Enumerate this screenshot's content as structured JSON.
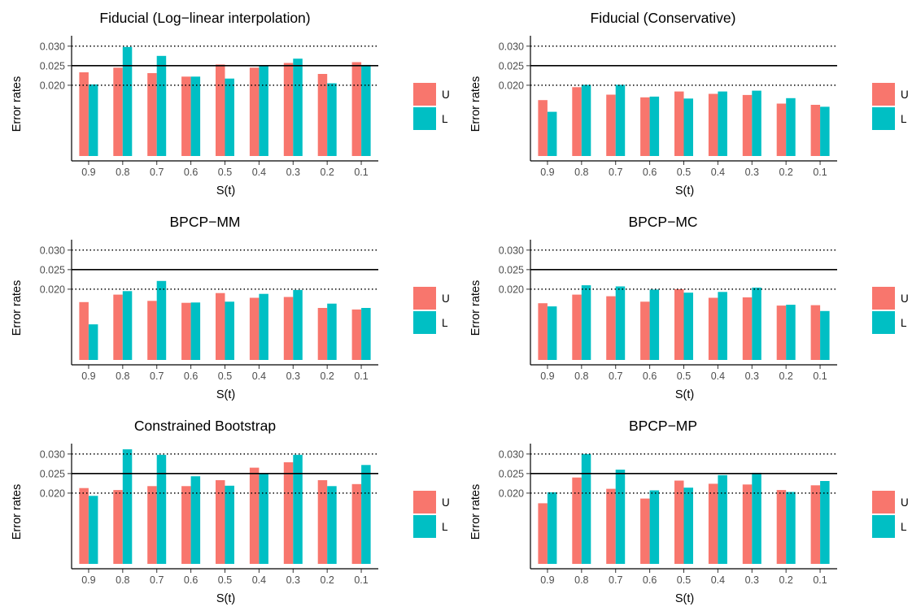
{
  "legend": {
    "entries": [
      {
        "label": "U",
        "color": "#F8766D"
      },
      {
        "label": "L",
        "color": "#00BFC4"
      }
    ]
  },
  "chart_data": [
    {
      "type": "bar",
      "title": "Fiducial (Log−linear interpolation)",
      "xlabel": "S(t)",
      "ylabel": "Error rates",
      "categories": [
        "0.9",
        "0.8",
        "0.7",
        "0.6",
        "0.5",
        "0.4",
        "0.3",
        "0.2",
        "0.1"
      ],
      "y_ticks": [
        "0.030",
        "0.025",
        "0.020"
      ],
      "reference_lines": [
        {
          "value": 0.03,
          "style": "dotted"
        },
        {
          "value": 0.025,
          "style": "solid"
        },
        {
          "value": 0.02,
          "style": "dotted"
        }
      ],
      "series": [
        {
          "name": "U",
          "color": "#F8766D",
          "values": [
            0.0233,
            0.0245,
            0.0231,
            0.0222,
            0.0253,
            0.0245,
            0.0257,
            0.0229,
            0.0259
          ]
        },
        {
          "name": "L",
          "color": "#00BFC4",
          "values": [
            0.0202,
            0.0298,
            0.0275,
            0.0222,
            0.0217,
            0.0251,
            0.0268,
            0.0205,
            0.0252
          ]
        }
      ],
      "legend": "right",
      "grid": false
    },
    {
      "type": "bar",
      "title": "Fiducial (Conservative)",
      "xlabel": "S(t)",
      "ylabel": "Error rates",
      "categories": [
        "0.9",
        "0.8",
        "0.7",
        "0.6",
        "0.5",
        "0.4",
        "0.3",
        "0.2",
        "0.1"
      ],
      "y_ticks": [
        "0.030",
        "0.025",
        "0.020"
      ],
      "reference_lines": [
        {
          "value": 0.03,
          "style": "dotted"
        },
        {
          "value": 0.025,
          "style": "solid"
        },
        {
          "value": 0.02,
          "style": "dotted"
        }
      ],
      "series": [
        {
          "name": "U",
          "color": "#F8766D",
          "values": [
            0.0162,
            0.0195,
            0.0176,
            0.0169,
            0.0184,
            0.0178,
            0.0175,
            0.0153,
            0.015
          ]
        },
        {
          "name": "L",
          "color": "#00BFC4",
          "values": [
            0.0132,
            0.0201,
            0.0201,
            0.0171,
            0.0166,
            0.0184,
            0.0186,
            0.0167,
            0.0145
          ]
        }
      ],
      "legend": "right",
      "grid": false
    },
    {
      "type": "bar",
      "title": "BPCP−MM",
      "xlabel": "S(t)",
      "ylabel": "Error rates",
      "categories": [
        "0.9",
        "0.8",
        "0.7",
        "0.6",
        "0.5",
        "0.4",
        "0.3",
        "0.2",
        "0.1"
      ],
      "y_ticks": [
        "0.030",
        "0.025",
        "0.020"
      ],
      "reference_lines": [
        {
          "value": 0.03,
          "style": "dotted"
        },
        {
          "value": 0.025,
          "style": "solid"
        },
        {
          "value": 0.02,
          "style": "dotted"
        }
      ],
      "series": [
        {
          "name": "U",
          "color": "#F8766D",
          "values": [
            0.0167,
            0.0186,
            0.017,
            0.0165,
            0.019,
            0.0178,
            0.018,
            0.0152,
            0.0148
          ]
        },
        {
          "name": "L",
          "color": "#00BFC4",
          "values": [
            0.011,
            0.0195,
            0.0221,
            0.0166,
            0.0168,
            0.0188,
            0.0198,
            0.0163,
            0.0152
          ]
        }
      ],
      "legend": "right",
      "grid": false
    },
    {
      "type": "bar",
      "title": "BPCP−MC",
      "xlabel": "S(t)",
      "ylabel": "Error rates",
      "categories": [
        "0.9",
        "0.8",
        "0.7",
        "0.6",
        "0.5",
        "0.4",
        "0.3",
        "0.2",
        "0.1"
      ],
      "y_ticks": [
        "0.030",
        "0.025",
        "0.020"
      ],
      "reference_lines": [
        {
          "value": 0.03,
          "style": "dotted"
        },
        {
          "value": 0.025,
          "style": "solid"
        },
        {
          "value": 0.02,
          "style": "dotted"
        }
      ],
      "series": [
        {
          "name": "U",
          "color": "#F8766D",
          "values": [
            0.0164,
            0.0186,
            0.0182,
            0.0168,
            0.02,
            0.0178,
            0.0179,
            0.0158,
            0.0159
          ]
        },
        {
          "name": "L",
          "color": "#00BFC4",
          "values": [
            0.0156,
            0.021,
            0.0207,
            0.0199,
            0.0191,
            0.0193,
            0.0204,
            0.016,
            0.0144
          ]
        }
      ],
      "legend": "right",
      "grid": false
    },
    {
      "type": "bar",
      "title": "Constrained Bootstrap",
      "xlabel": "S(t)",
      "ylabel": "Error rates",
      "categories": [
        "0.9",
        "0.8",
        "0.7",
        "0.6",
        "0.5",
        "0.4",
        "0.3",
        "0.2",
        "0.1"
      ],
      "y_ticks": [
        "0.030",
        "0.025",
        "0.020"
      ],
      "reference_lines": [
        {
          "value": 0.03,
          "style": "dotted"
        },
        {
          "value": 0.025,
          "style": "solid"
        },
        {
          "value": 0.02,
          "style": "dotted"
        }
      ],
      "series": [
        {
          "name": "U",
          "color": "#F8766D",
          "values": [
            0.0213,
            0.0208,
            0.0218,
            0.0218,
            0.0233,
            0.0265,
            0.0279,
            0.0233,
            0.0223
          ]
        },
        {
          "name": "L",
          "color": "#00BFC4",
          "values": [
            0.0193,
            0.0312,
            0.0298,
            0.0243,
            0.0219,
            0.025,
            0.0298,
            0.0218,
            0.0272
          ]
        }
      ],
      "legend": "right",
      "grid": false
    },
    {
      "type": "bar",
      "title": "BPCP−MP",
      "xlabel": "S(t)",
      "ylabel": "Error rates",
      "categories": [
        "0.9",
        "0.8",
        "0.7",
        "0.6",
        "0.5",
        "0.4",
        "0.3",
        "0.2",
        "0.1"
      ],
      "y_ticks": [
        "0.030",
        "0.025",
        "0.020"
      ],
      "reference_lines": [
        {
          "value": 0.03,
          "style": "dotted"
        },
        {
          "value": 0.025,
          "style": "solid"
        },
        {
          "value": 0.02,
          "style": "dotted"
        }
      ],
      "series": [
        {
          "name": "U",
          "color": "#F8766D",
          "values": [
            0.0174,
            0.024,
            0.0211,
            0.0186,
            0.0232,
            0.0224,
            0.0222,
            0.0208,
            0.022
          ]
        },
        {
          "name": "L",
          "color": "#00BFC4",
          "values": [
            0.0202,
            0.03,
            0.026,
            0.0207,
            0.0214,
            0.0246,
            0.0252,
            0.0203,
            0.0231
          ]
        }
      ],
      "legend": "right",
      "grid": false
    }
  ]
}
